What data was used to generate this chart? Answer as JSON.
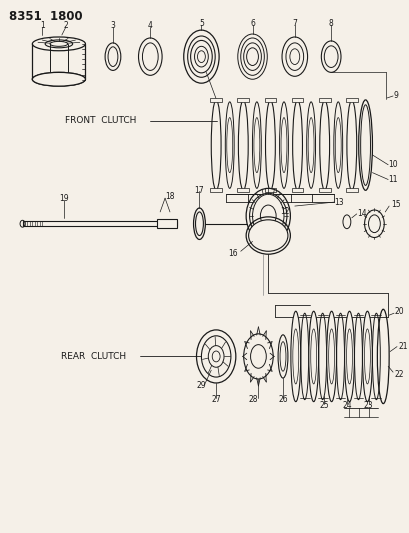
{
  "title": "8351  1800",
  "bg": "#f5f0e8",
  "lc": "#1a1a1a",
  "front_clutch_label": "FRONT  CLUTCH",
  "rear_clutch_label": "REAR  CLUTCH"
}
